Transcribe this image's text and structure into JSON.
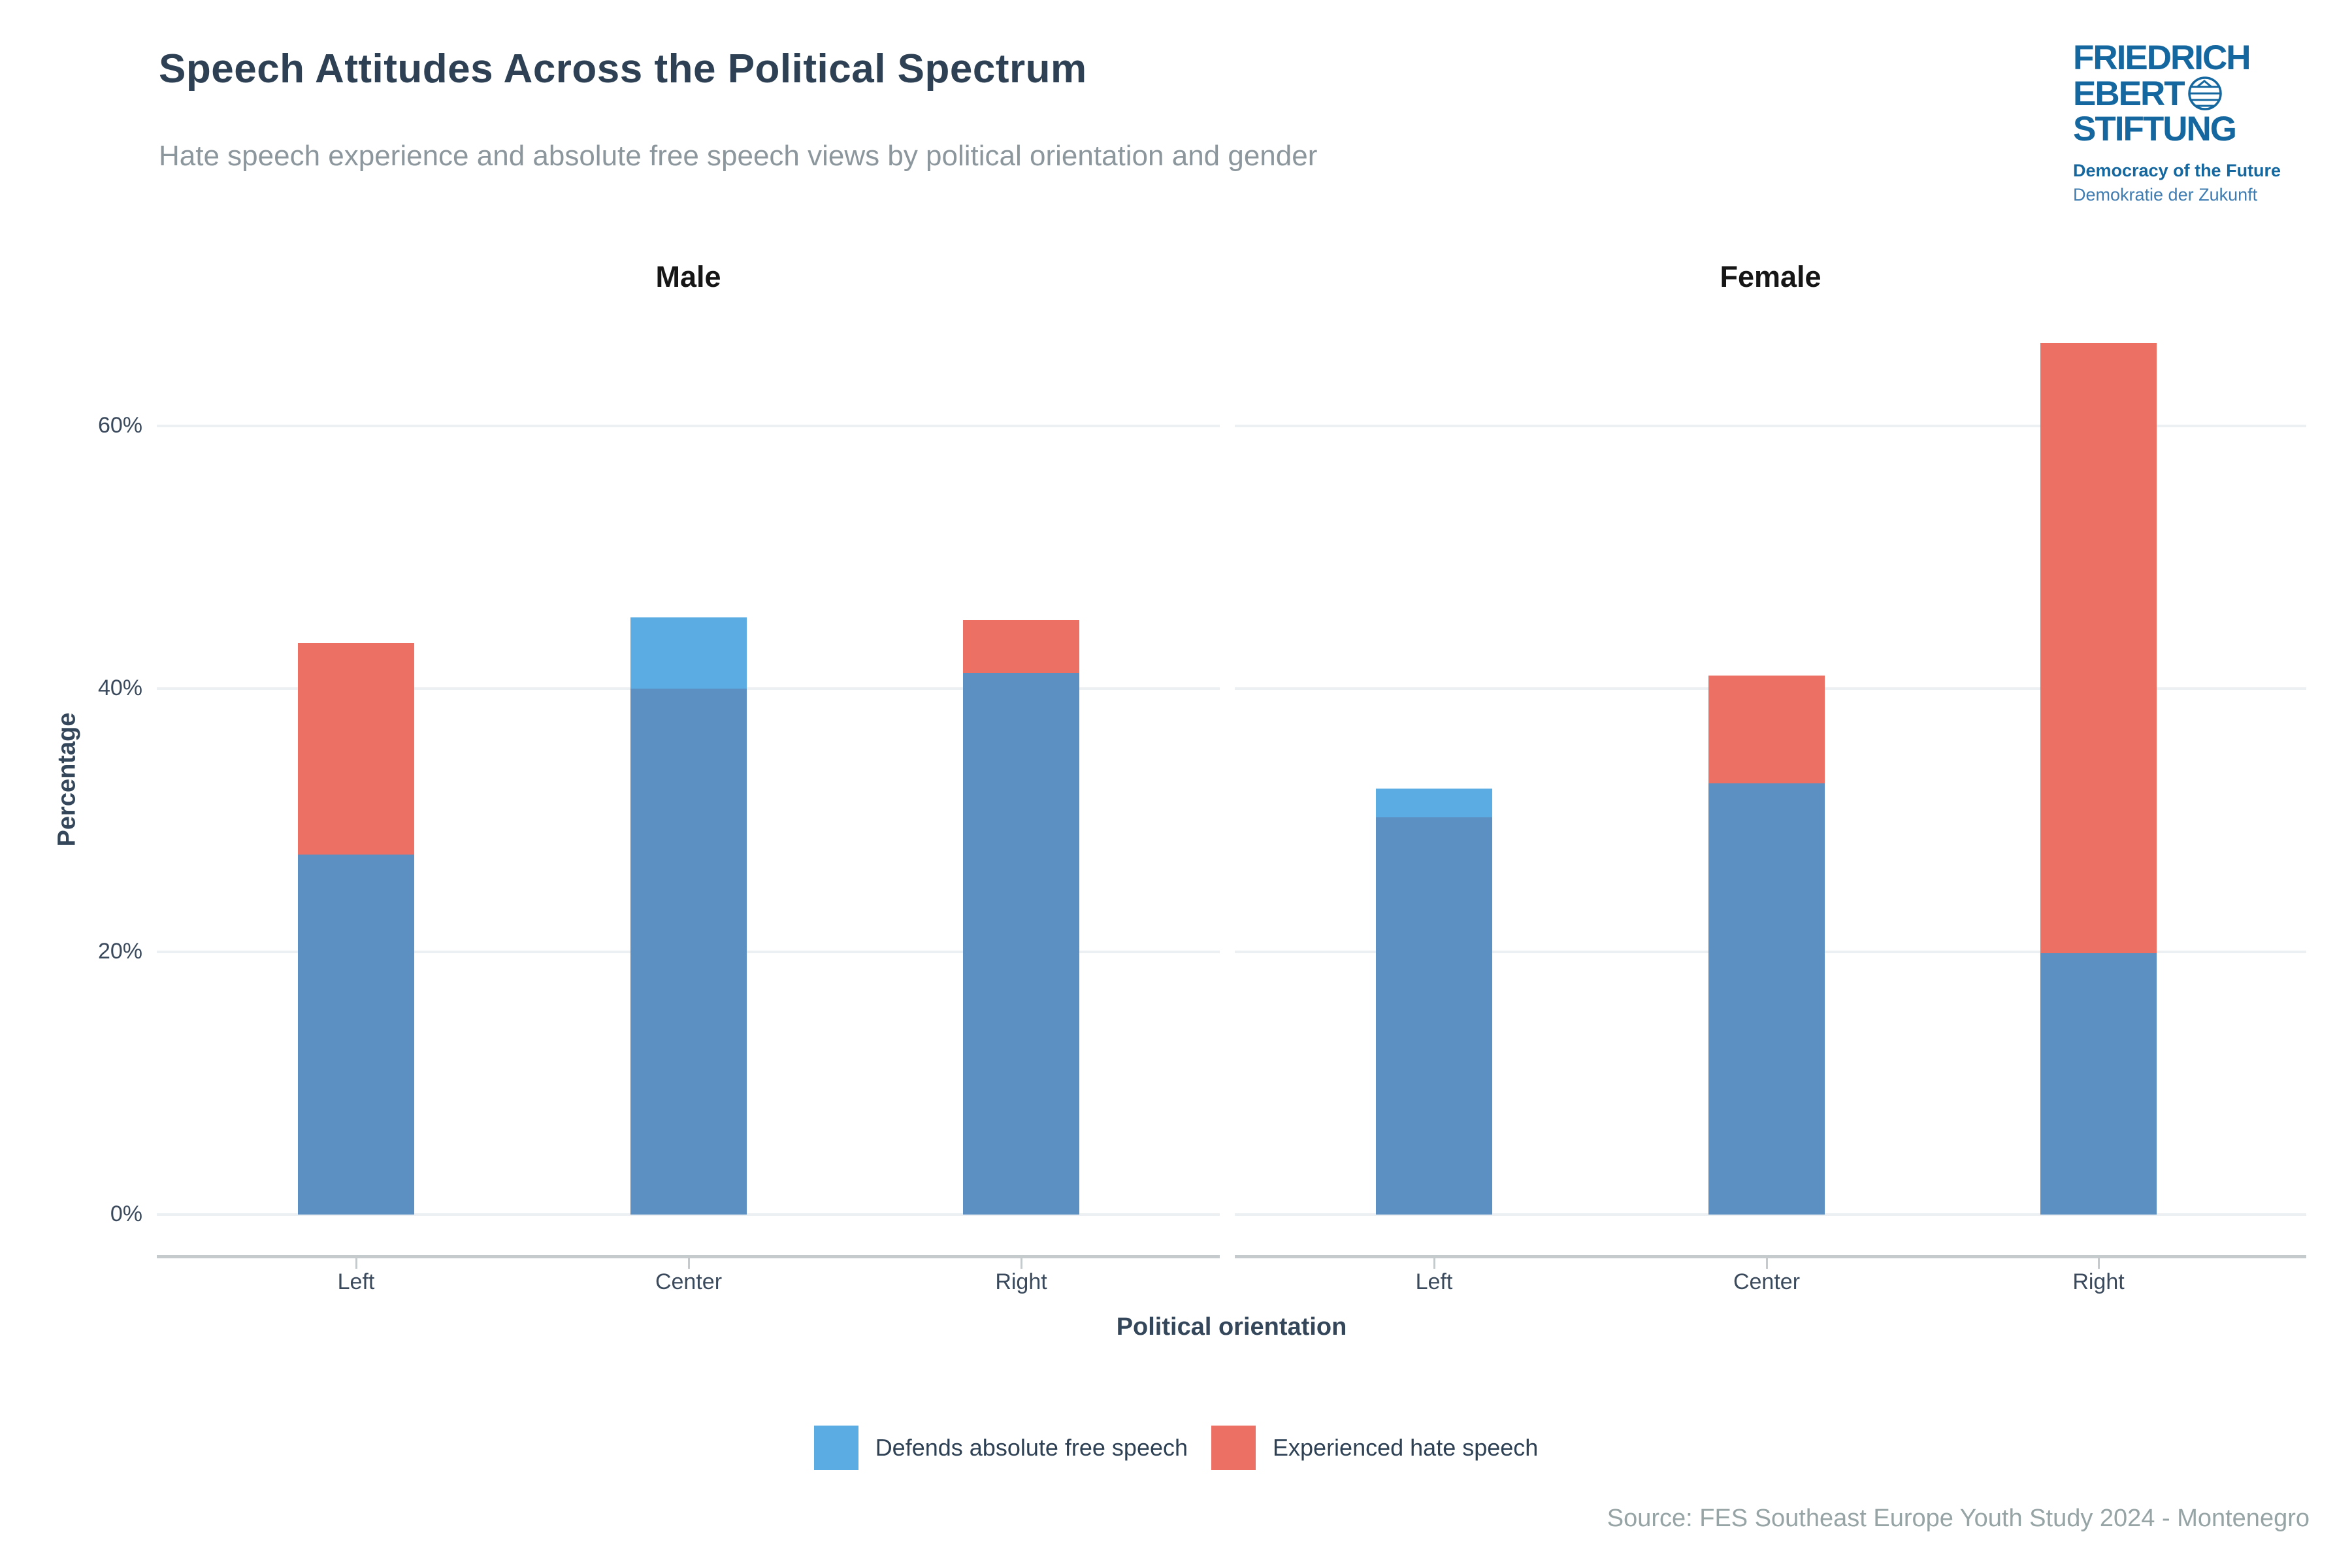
{
  "chart_data": {
    "type": "bar",
    "layout": "overlapping-bars-faceted",
    "title": "Speech Attitudes Across the Political Spectrum",
    "subtitle": "Hate speech experience and absolute free speech views by political orientation and gender",
    "xlabel": "Political orientation",
    "ylabel": "Percentage",
    "categories": [
      "Left",
      "Center",
      "Right"
    ],
    "yticks": [
      "0%",
      "20%",
      "40%",
      "60%"
    ],
    "ytick_values": [
      0,
      20,
      40,
      60
    ],
    "ylim": [
      0,
      69
    ],
    "grid": true,
    "legend_position": "bottom",
    "facets": [
      {
        "label": "Male",
        "series": [
          {
            "name": "Defends absolute free speech",
            "values": [
              27.4,
              45.4,
              41.2
            ]
          },
          {
            "name": "Experienced hate speech",
            "values": [
              43.5,
              40.0,
              45.2
            ]
          }
        ]
      },
      {
        "label": "Female",
        "series": [
          {
            "name": "Defends absolute free speech",
            "values": [
              32.4,
              32.8,
              19.9
            ]
          },
          {
            "name": "Experienced hate speech",
            "values": [
              30.2,
              41.0,
              66.3
            ]
          }
        ]
      }
    ],
    "colors": {
      "defends_free_speech": "#5BACE2",
      "experienced_hate_speech": "#EC7063",
      "overlap": "#5C90C2",
      "gridline": "#EDF0F2",
      "axis_text": "#3A4A5C"
    }
  },
  "legend": {
    "items": [
      {
        "label": "Defends absolute free speech",
        "color": "#5BACE2"
      },
      {
        "label": "Experienced hate speech",
        "color": "#EC7063"
      }
    ]
  },
  "logo": {
    "line1": "FRIEDRICH",
    "line2": "EBERT",
    "line3": "STIFTUNG",
    "tagline1": "Democracy of the Future",
    "tagline2": "Demokratie der Zukunft",
    "color": "#15679F"
  },
  "source": {
    "text": "Source: FES Southeast Europe Youth Study 2024 - Montenegro"
  }
}
